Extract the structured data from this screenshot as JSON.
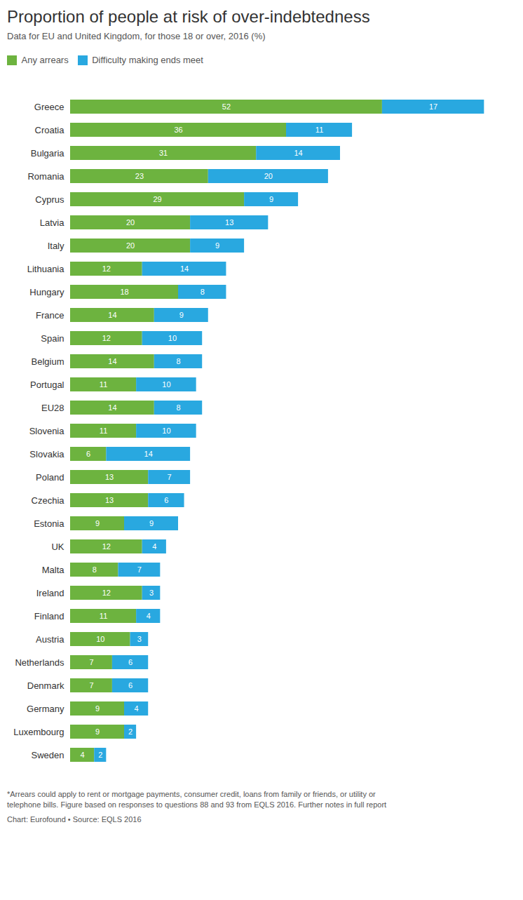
{
  "chart_data": {
    "type": "bar",
    "orientation": "horizontal",
    "stacked": true,
    "title": "Proportion of people at risk of over-indebtedness",
    "subtitle": "Data for EU and United Kingdom, for those 18 or over, 2016 (%)",
    "annotations": [
      "*Arrears could apply to rent or mortgage payments, consumer credit, loans from family or friends, or utility or\ntelephone bills. Figure based on responses to questions 88 and 93 from EQLS 2016. Further notes in full report",
      "Chart: Eurofound • Source: EQLS 2016"
    ],
    "categories": [
      "Greece",
      "Croatia",
      "Bulgaria",
      "Romania",
      "Cyprus",
      "Latvia",
      "Italy",
      "Lithuania",
      "Hungary",
      "France",
      "Spain",
      "Belgium",
      "Portugal",
      "EU28",
      "Slovenia",
      "Slovakia",
      "Poland",
      "Czechia",
      "Estonia",
      "UK",
      "Malta",
      "Ireland",
      "Finland",
      "Austria",
      "Netherlands",
      "Denmark",
      "Germany",
      "Luxembourg",
      "Sweden"
    ],
    "series": [
      {
        "name": "Any arrears",
        "color": "#6db33f",
        "values": [
          52,
          36,
          31,
          23,
          29,
          20,
          20,
          12,
          18,
          14,
          12,
          14,
          11,
          14,
          11,
          6,
          13,
          13,
          9,
          12,
          8,
          12,
          11,
          10,
          7,
          7,
          9,
          9,
          4
        ]
      },
      {
        "name": "Difficulty making ends meet",
        "color": "#29a8e0",
        "values": [
          17,
          11,
          14,
          20,
          9,
          13,
          9,
          14,
          8,
          9,
          10,
          8,
          10,
          8,
          10,
          14,
          7,
          6,
          9,
          4,
          7,
          3,
          4,
          3,
          6,
          6,
          4,
          2,
          2
        ]
      }
    ],
    "xlim": [
      0,
      72
    ],
    "tick_labels": "y",
    "data_labels": true,
    "grid": false,
    "legend": "upper left"
  }
}
